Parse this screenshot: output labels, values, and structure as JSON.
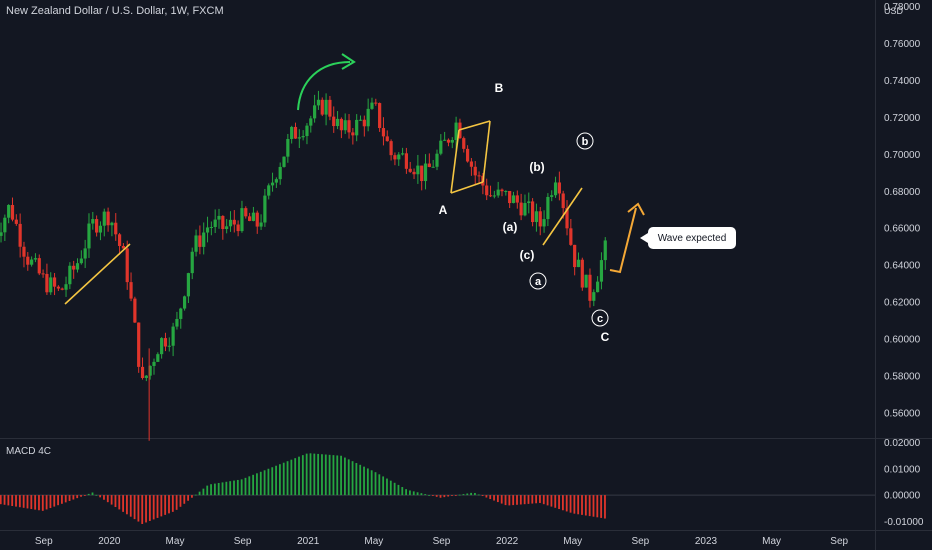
{
  "header": {
    "symbol_title": "New Zealand Dollar / U.S. Dollar, 1W, FXCM",
    "currency": "USD"
  },
  "indicator": {
    "name": "MACD 4C"
  },
  "annotations": {
    "callout": "Wave expected",
    "wave_labels": [
      "A",
      "B",
      "C",
      "(a)",
      "(b)",
      "(c)",
      "a",
      "b",
      "c"
    ]
  },
  "colors": {
    "bull": "#26a641",
    "bear": "#e0352b",
    "trend": "#f4c542",
    "arrow_up": "#2bd15a",
    "arrow_proj": "#f4a836",
    "background": "#131722"
  },
  "chart_data": {
    "type": "candlestick",
    "price_axis": {
      "ticks": [
        "0.78000",
        "0.76000",
        "0.74000",
        "0.72000",
        "0.70000",
        "0.68000",
        "0.66000",
        "0.64000",
        "0.62000",
        "0.60000",
        "0.58000",
        "0.56000"
      ],
      "ylim": [
        0.54,
        0.785
      ]
    },
    "macd_axis": {
      "ticks": [
        "0.02000",
        "0.01000",
        "0.00000",
        "-0.01000"
      ],
      "ylim": [
        -0.013,
        0.02
      ]
    },
    "time_axis": [
      "Sep",
      "2020",
      "May",
      "Sep",
      "2021",
      "May",
      "Sep",
      "2022",
      "May",
      "Sep",
      "2023",
      "May",
      "Sep"
    ],
    "price_path": [
      {
        "t": "2019-06",
        "v": 0.655
      },
      {
        "t": "2019-07",
        "v": 0.672
      },
      {
        "t": "2019-08",
        "v": 0.645
      },
      {
        "t": "2019-09",
        "v": 0.632
      },
      {
        "t": "2019-10",
        "v": 0.625
      },
      {
        "t": "2019-11",
        "v": 0.64
      },
      {
        "t": "2019-12",
        "v": 0.662
      },
      {
        "t": "2020-01",
        "v": 0.668
      },
      {
        "t": "2020-02",
        "v": 0.64
      },
      {
        "t": "2020-03",
        "v": 0.575
      },
      {
        "t": "2020-04",
        "v": 0.598
      },
      {
        "t": "2020-05",
        "v": 0.605
      },
      {
        "t": "2020-06",
        "v": 0.648
      },
      {
        "t": "2020-07",
        "v": 0.662
      },
      {
        "t": "2020-08",
        "v": 0.66
      },
      {
        "t": "2020-09",
        "v": 0.665
      },
      {
        "t": "2020-10",
        "v": 0.662
      },
      {
        "t": "2020-11",
        "v": 0.69
      },
      {
        "t": "2020-12",
        "v": 0.71
      },
      {
        "t": "2021-01",
        "v": 0.718
      },
      {
        "t": "2021-02",
        "v": 0.728
      },
      {
        "t": "2021-03",
        "v": 0.712
      },
      {
        "t": "2021-04",
        "v": 0.716
      },
      {
        "t": "2021-05",
        "v": 0.725
      },
      {
        "t": "2021-06",
        "v": 0.7
      },
      {
        "t": "2021-07",
        "v": 0.698
      },
      {
        "t": "2021-08",
        "v": 0.688
      },
      {
        "t": "2021-09",
        "v": 0.702
      },
      {
        "t": "2021-10",
        "v": 0.718
      },
      {
        "t": "2021-11",
        "v": 0.69
      },
      {
        "t": "2021-12",
        "v": 0.678
      },
      {
        "t": "2022-01",
        "v": 0.677
      },
      {
        "t": "2022-02",
        "v": 0.672
      },
      {
        "t": "2022-03",
        "v": 0.662
      },
      {
        "t": "2022-04",
        "v": 0.692
      },
      {
        "t": "2022-05",
        "v": 0.645
      },
      {
        "t": "2022-06",
        "v": 0.624
      },
      {
        "t": "2022-07",
        "v": 0.65
      }
    ],
    "macd_path": [
      {
        "t": "2019-06",
        "v": -0.003
      },
      {
        "t": "2019-09",
        "v": -0.006
      },
      {
        "t": "2019-12",
        "v": 0.001
      },
      {
        "t": "2020-03",
        "v": -0.011
      },
      {
        "t": "2020-05",
        "v": -0.006
      },
      {
        "t": "2020-07",
        "v": 0.004
      },
      {
        "t": "2020-09",
        "v": 0.006
      },
      {
        "t": "2021-01",
        "v": 0.016
      },
      {
        "t": "2021-03",
        "v": 0.015
      },
      {
        "t": "2021-05",
        "v": 0.009
      },
      {
        "t": "2021-07",
        "v": 0.002
      },
      {
        "t": "2021-09",
        "v": -0.001
      },
      {
        "t": "2021-11",
        "v": 0.001
      },
      {
        "t": "2022-01",
        "v": -0.004
      },
      {
        "t": "2022-03",
        "v": -0.003
      },
      {
        "t": "2022-05",
        "v": -0.007
      },
      {
        "t": "2022-07",
        "v": -0.009
      }
    ]
  }
}
